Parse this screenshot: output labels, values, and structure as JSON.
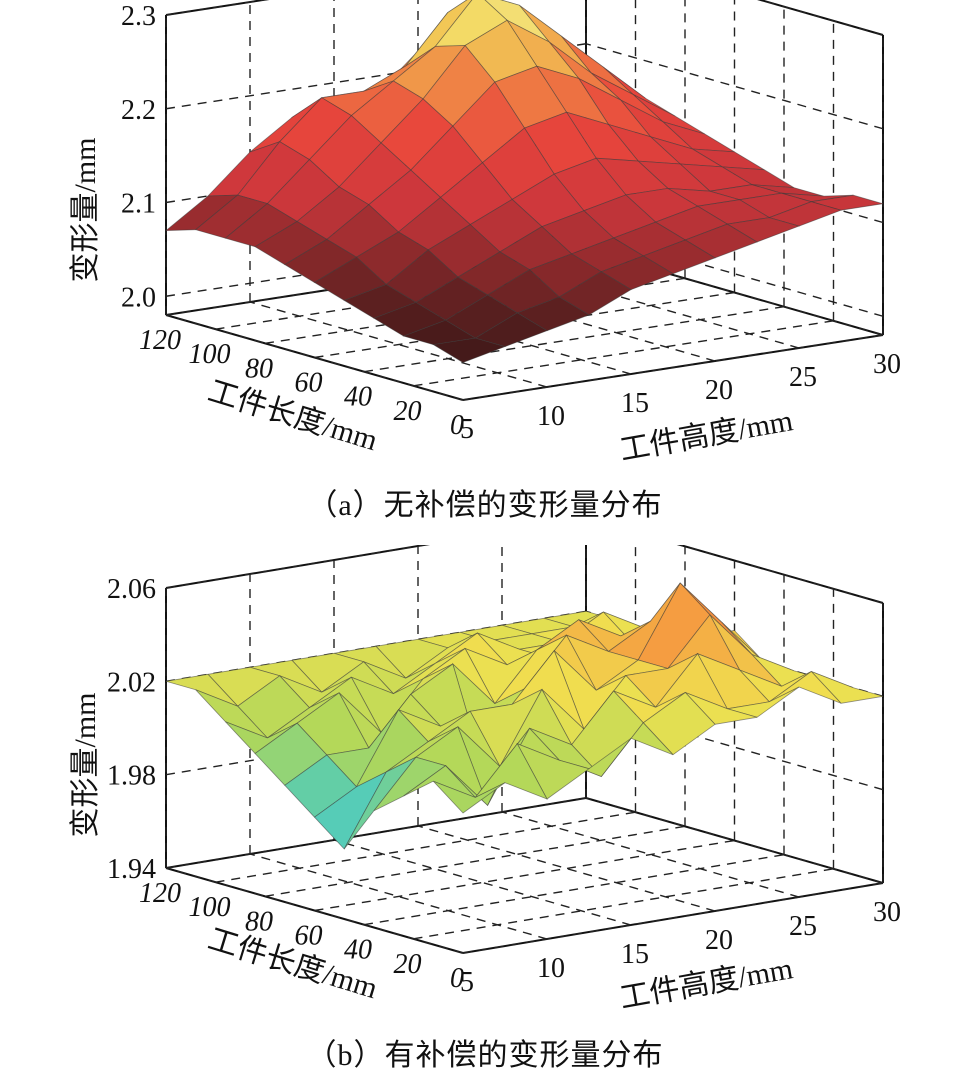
{
  "chart_data": [
    {
      "type": "surface",
      "caption": "（a）无补偿的变形量分布",
      "xlabel": "工件高度/mm",
      "ylabel": "工件长度/mm",
      "zlabel": "变形量/mm",
      "x_ticks": [
        "5",
        "10",
        "15",
        "20",
        "25",
        "30"
      ],
      "y_ticks": [
        "0",
        "20",
        "40",
        "60",
        "80",
        "100",
        "120"
      ],
      "z_ticks": [
        "2.0",
        "2.1",
        "2.2",
        "2.3"
      ],
      "xlim": [
        5,
        30
      ],
      "ylim": [
        0,
        120
      ],
      "zlim": [
        1.98,
        2.3
      ],
      "grid": true,
      "x": [
        5,
        7.5,
        10,
        12.5,
        15,
        17.5,
        20,
        22.5,
        25,
        27.5,
        30
      ],
      "y": [
        0,
        12,
        24,
        36,
        48,
        60,
        72,
        84,
        96,
        108,
        120
      ],
      "z": [
        [
          2.02,
          2.03,
          2.04,
          2.05,
          2.07,
          2.08,
          2.09,
          2.1,
          2.11,
          2.12,
          2.12
        ],
        [
          2.03,
          2.03,
          2.05,
          2.06,
          2.08,
          2.09,
          2.1,
          2.11,
          2.11,
          2.12,
          2.12
        ],
        [
          2.03,
          2.04,
          2.06,
          2.08,
          2.09,
          2.1,
          2.11,
          2.12,
          2.12,
          2.12,
          2.11
        ],
        [
          2.04,
          2.05,
          2.07,
          2.09,
          2.11,
          2.12,
          2.13,
          2.13,
          2.12,
          2.12,
          2.11
        ],
        [
          2.05,
          2.06,
          2.09,
          2.11,
          2.13,
          2.15,
          2.16,
          2.15,
          2.14,
          2.13,
          2.12
        ],
        [
          2.06,
          2.08,
          2.1,
          2.13,
          2.16,
          2.19,
          2.2,
          2.18,
          2.16,
          2.14,
          2.13
        ],
        [
          2.07,
          2.09,
          2.12,
          2.15,
          2.19,
          2.23,
          2.24,
          2.22,
          2.19,
          2.16,
          2.14
        ],
        [
          2.08,
          2.1,
          2.13,
          2.17,
          2.21,
          2.26,
          2.28,
          2.25,
          2.21,
          2.18,
          2.15
        ],
        [
          2.08,
          2.11,
          2.15,
          2.19,
          2.22,
          2.25,
          2.3,
          2.28,
          2.24,
          2.2,
          2.16
        ],
        [
          2.08,
          2.11,
          2.16,
          2.2,
          2.2,
          2.22,
          2.27,
          2.27,
          2.24,
          2.2,
          2.16
        ],
        [
          2.07,
          2.1,
          2.14,
          2.17,
          2.15,
          2.18,
          2.22,
          2.22,
          2.2,
          2.17,
          2.14
        ]
      ]
    },
    {
      "type": "surface",
      "caption": "（b）有补偿的变形量分布",
      "xlabel": "工件高度/mm",
      "ylabel": "工件长度/mm",
      "zlabel": "变形量/mm",
      "x_ticks": [
        "5",
        "10",
        "15",
        "20",
        "25",
        "30"
      ],
      "y_ticks": [
        "0",
        "20",
        "40",
        "60",
        "80",
        "100",
        "120"
      ],
      "z_ticks": [
        "1.94",
        "1.98",
        "2.02",
        "2.06"
      ],
      "xlim": [
        5,
        30
      ],
      "ylim": [
        0,
        120
      ],
      "zlim": [
        1.94,
        2.06
      ],
      "grid": true,
      "x": [
        5,
        7.5,
        10,
        12.5,
        15,
        17.5,
        20,
        22.5,
        25,
        27.5,
        30
      ],
      "y": [
        0,
        12,
        24,
        36,
        48,
        60,
        72,
        84,
        96,
        108,
        120
      ],
      "z": [
        [
          2.0,
          2.01,
          2.0,
          2.01,
          2.02,
          2.01,
          2.02,
          2.02,
          2.03,
          2.02,
          2.02
        ],
        [
          2.01,
          2.0,
          2.02,
          2.01,
          2.0,
          2.02,
          2.03,
          2.02,
          2.02,
          2.03,
          2.02
        ],
        [
          2.0,
          2.01,
          1.99,
          2.02,
          2.01,
          2.03,
          2.02,
          2.04,
          2.03,
          2.02,
          2.02
        ],
        [
          1.99,
          2.01,
          2.02,
          2.0,
          2.03,
          2.01,
          2.03,
          2.03,
          2.05,
          2.03,
          2.02
        ],
        [
          1.97,
          2.0,
          2.01,
          2.02,
          2.02,
          2.04,
          2.02,
          2.03,
          2.06,
          2.04,
          2.02
        ],
        [
          1.98,
          1.99,
          2.02,
          2.01,
          1.99,
          2.02,
          2.04,
          2.03,
          2.04,
          2.03,
          2.03
        ],
        [
          1.99,
          2.0,
          2.0,
          2.02,
          2.03,
          2.01,
          2.03,
          2.04,
          2.03,
          2.03,
          2.02
        ],
        [
          2.0,
          2.01,
          2.02,
          2.0,
          2.02,
          2.03,
          2.02,
          2.02,
          2.03,
          2.02,
          2.02
        ],
        [
          2.01,
          2.0,
          2.01,
          2.02,
          2.01,
          2.02,
          2.03,
          2.02,
          2.02,
          2.03,
          2.02
        ],
        [
          2.02,
          2.01,
          2.02,
          2.01,
          2.02,
          2.01,
          2.02,
          2.02,
          2.02,
          2.02,
          2.02
        ],
        [
          2.02,
          2.02,
          2.02,
          2.02,
          2.02,
          2.02,
          2.02,
          2.02,
          2.02,
          2.02,
          2.02
        ]
      ]
    }
  ]
}
